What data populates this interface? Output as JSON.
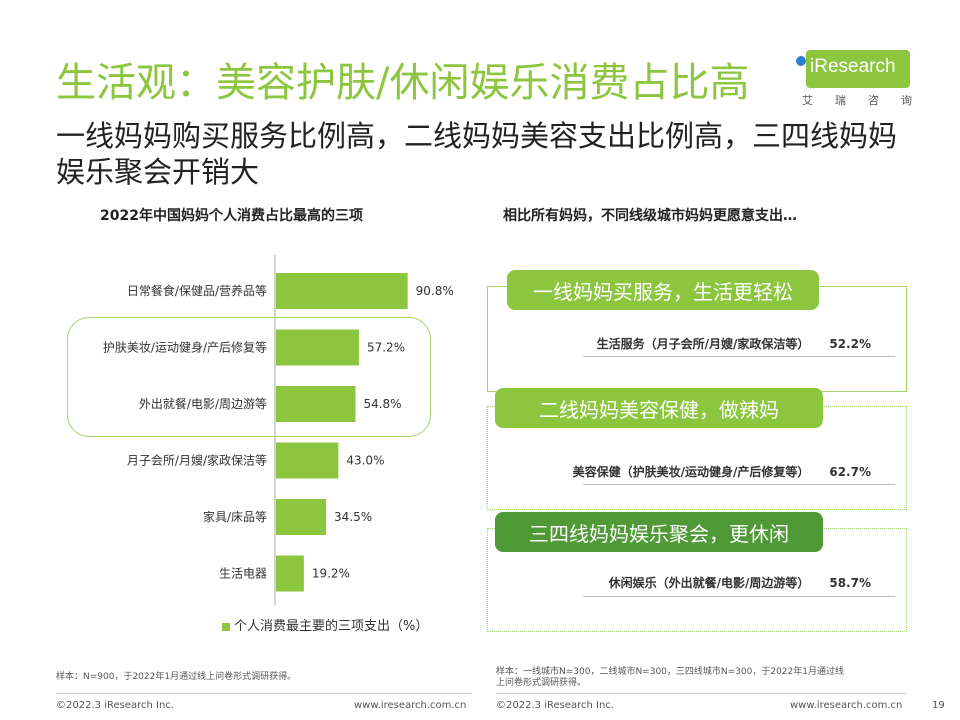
{
  "title": "生活观：美容护肤/休闲娱乐消费占比高",
  "subtitle": "一线妈妈购买服务比例高，二线妈妈美容支出比例高，三四线妈妈娱乐聚会开销大",
  "logo": {
    "text": "iResearch",
    "sub": [
      "艾",
      "瑞",
      "咨",
      "询"
    ],
    "brand_color": "#8cc63f",
    "dot_color": "#2b7fd1"
  },
  "left_heading": "2022年中国妈妈个人消费占比最高的三项",
  "right_heading": "相比所有妈妈，不同线级城市妈妈更愿意支出…",
  "chart_data": {
    "type": "bar",
    "orientation": "horizontal",
    "categories": [
      "日常餐食/保健品/营养品等",
      "护肤美妆/运动健身/产后修复等",
      "外出就餐/电影/周边游等",
      "月子会所/月嫂/家政保洁等",
      "家具/床品等",
      "生活电器"
    ],
    "series": [
      {
        "name": "个人消费最主要的三项支出（%）",
        "values": [
          90.8,
          57.2,
          54.8,
          43.0,
          34.5,
          19.2
        ],
        "labels": [
          "90.8%",
          "57.2%",
          "54.8%",
          "43.0%",
          "34.5%",
          "19.2%"
        ]
      }
    ],
    "xlim": [
      0,
      100
    ],
    "color": "#8cc63f",
    "highlighted": [
      "护肤美妆/运动健身/产后修复等",
      "外出就餐/电影/周边游等"
    ],
    "legend": "bottom"
  },
  "tiers": [
    {
      "pill": "一线妈妈买服务，生活更轻松",
      "pill_color": "#8cc63f",
      "item": "生活服务（月子会所/月嫂/家政保洁等）",
      "value": "52.2%"
    },
    {
      "pill": "二线妈妈美容保健，做辣妈",
      "pill_color": "#8cc63f",
      "item": "美容保健（护肤美妆/运动健身/产后修复等）",
      "value": "62.7%"
    },
    {
      "pill": "三四线妈妈娱乐聚会，更休闲",
      "pill_color": "#4f9a37",
      "item": "休闲娱乐（外出就餐/电影/周边游等）",
      "value": "58.7%"
    }
  ],
  "notes": {
    "left": "样本：N=900，于2022年1月通过线上问卷形式调研获得。",
    "right_1": "样本：一线城市N=300，二线城市N=300，三四线城市N=300，于2022年1月通过线",
    "right_2": "上问卷形式调研获得。"
  },
  "footer": {
    "left_copyright": "©2022.3 iResearch Inc.",
    "left_url": "www.iresearch.com.cn",
    "right_copyright": "©2022.3 iResearch Inc.",
    "right_url": "www.iresearch.com.cn",
    "page_number": "19"
  }
}
